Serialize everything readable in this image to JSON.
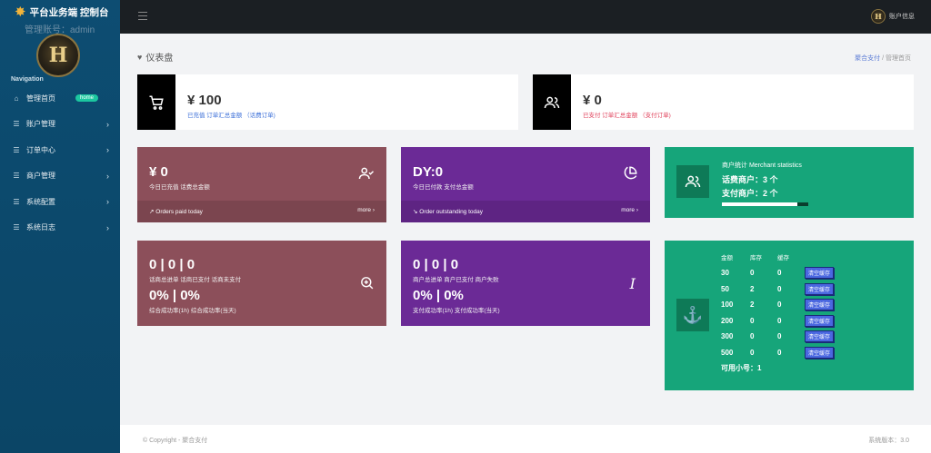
{
  "sidebar": {
    "app_title": "平台业务端 控制台",
    "admin_label": "管理账号：admin",
    "avatar_letter": "H",
    "nav_title": "Navigation",
    "items": [
      {
        "label": "管理首页",
        "icon": "home-icon",
        "badge": "home"
      },
      {
        "label": "账户管理",
        "icon": "list-icon"
      },
      {
        "label": "订单中心",
        "icon": "list-icon"
      },
      {
        "label": "商户管理",
        "icon": "list-icon"
      },
      {
        "label": "系统配置",
        "icon": "list-icon"
      },
      {
        "label": "系统日志",
        "icon": "list-icon"
      }
    ]
  },
  "topbar": {
    "account_label": "账户信息"
  },
  "page": {
    "title": "仪表盘",
    "breadcrumb": [
      "聚合支付",
      "管理首页"
    ]
  },
  "cards": {
    "recharge_total": {
      "amount": "¥ 100",
      "sub": "已充值 订单汇总金额 （话费订单)",
      "sub_color": "#3b6fd8"
    },
    "paid_total": {
      "amount": "¥ 0",
      "sub": "已支付 订单汇总金额 （支付订单)",
      "sub_color": "#e0405a"
    },
    "today_recharge": {
      "amount": "¥ 0",
      "desc": "今日已充值 话费总金额",
      "foot": "Orders paid today",
      "more": "more ›"
    },
    "today_paid": {
      "amount": "DY:0",
      "desc": "今日已付款 支付总金额",
      "foot": "Order outstanding today",
      "more": "more ›"
    },
    "merchant": {
      "title": "商户统计 Merchant statistics",
      "line1": "话费商户：3 个",
      "line2": "支付商户：2 个",
      "progress": 0.87
    },
    "recharge_stats": {
      "counts": "0  |  0  |  0",
      "counts_desc": "话商总进单   话商已支付   话商未支付",
      "rates": "0%  |  0%",
      "rates_desc": "综合成功率(1h)   综合成功率(当天)"
    },
    "pay_stats": {
      "counts": "0  |  0  |  0",
      "counts_desc": "商户总进单   商户已支付   商户失败",
      "rates": "0%  |  0%",
      "rates_desc": "支付成功率(1h)   支付成功率(当天)"
    },
    "stock": {
      "headers": [
        "金额",
        "库存",
        "缓存"
      ],
      "rows": [
        {
          "amount": "30",
          "stock": "0",
          "cache": "0",
          "btn": "清空缓存"
        },
        {
          "amount": "50",
          "stock": "2",
          "cache": "0",
          "btn": "清空缓存"
        },
        {
          "amount": "100",
          "stock": "2",
          "cache": "0",
          "btn": "清空缓存"
        },
        {
          "amount": "200",
          "stock": "0",
          "cache": "0",
          "btn": "清空缓存"
        },
        {
          "amount": "300",
          "stock": "0",
          "cache": "0",
          "btn": "清空缓存"
        },
        {
          "amount": "500",
          "stock": "0",
          "cache": "0",
          "btn": "清空缓存"
        }
      ],
      "available": "可用小号：1"
    }
  },
  "footer": {
    "copyright": "© Copyright - 聚合支付",
    "version": "系统版本：3.0"
  },
  "colors": {
    "sidebar": "#0c4a6e",
    "topbar": "#1b1f23",
    "rose": "#8c4f5a",
    "purple": "#6b2a96",
    "green": "#16a57a",
    "badge": "#1cc7a0"
  }
}
